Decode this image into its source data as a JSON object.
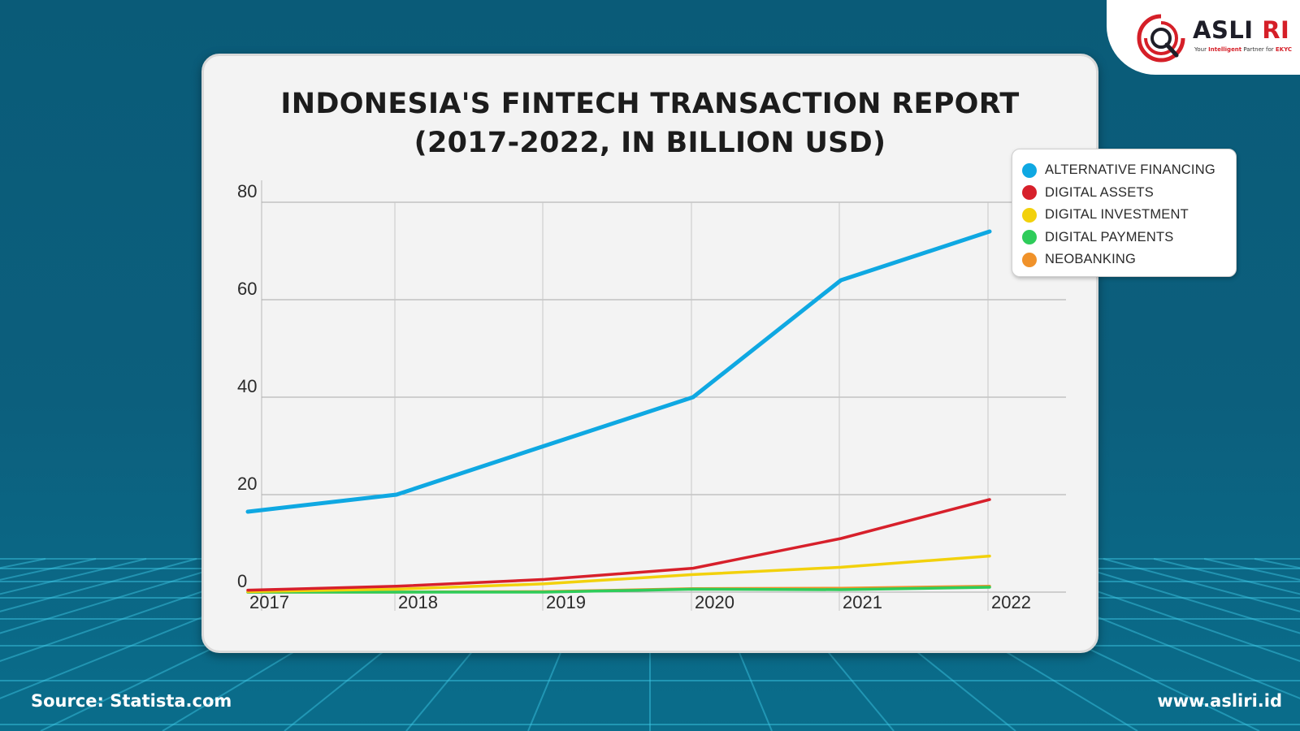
{
  "brand": {
    "name_main": "ASLI ",
    "name_accent": "RI",
    "tagline_prefix": "Your ",
    "tagline_bold": "Intelligent",
    "tagline_mid": " Partner for ",
    "tagline_end": "EKYC",
    "accent_color": "#d51f28"
  },
  "title_line1": "INDONESIA'S FINTECH TRANSACTION REPORT",
  "title_line2": "(2017-2022, IN BILLION USD)",
  "footer": {
    "source": "Source: Statista.com",
    "url": "www.asliri.id"
  },
  "legend": [
    {
      "label": "ALTERNATIVE FINANCING",
      "color": "#0fa8e2"
    },
    {
      "label": "DIGITAL ASSETS",
      "color": "#d7202b"
    },
    {
      "label": "DIGITAL INVESTMENT",
      "color": "#f2d10c"
    },
    {
      "label": "DIGITAL PAYMENTS",
      "color": "#2ecc5a"
    },
    {
      "label": "NEOBANKING",
      "color": "#f0922a"
    }
  ],
  "chart_data": {
    "type": "line",
    "title": "INDONESIA'S FINTECH TRANSACTION REPORT (2017-2022, IN BILLION USD)",
    "xlabel": "",
    "ylabel": "",
    "x": [
      "2017",
      "2018",
      "2019",
      "2020",
      "2021",
      "2022"
    ],
    "ylim": [
      0,
      80
    ],
    "yticks": [
      0,
      20,
      40,
      60,
      80
    ],
    "grid": true,
    "legend_position": "top-right",
    "series": [
      {
        "name": "ALTERNATIVE FINANCING",
        "color": "#0fa8e2",
        "values": [
          16.5,
          20,
          30,
          40,
          64,
          74
        ]
      },
      {
        "name": "DIGITAL ASSETS",
        "color": "#d7202b",
        "values": [
          0.4,
          1.2,
          2.6,
          4.9,
          11,
          19
        ]
      },
      {
        "name": "DIGITAL INVESTMENT",
        "color": "#f2d10c",
        "values": [
          0.1,
          0.6,
          1.7,
          3.6,
          5.1,
          7.4
        ]
      },
      {
        "name": "DIGITAL PAYMENTS",
        "color": "#2ecc5a",
        "values": [
          0,
          0,
          0,
          0.6,
          0.5,
          1.0
        ]
      },
      {
        "name": "NEOBANKING",
        "color": "#f0922a",
        "values": [
          0,
          0,
          0.1,
          0.7,
          0.8,
          1.2
        ]
      }
    ]
  }
}
